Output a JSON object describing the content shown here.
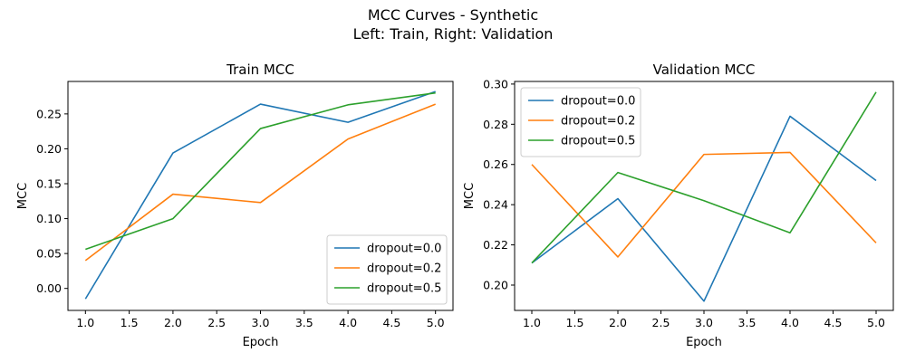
{
  "figure": {
    "title_line1": "MCC Curves - Synthetic",
    "title_line2": "Left: Train, Right: Validation"
  },
  "chart_data": [
    {
      "type": "line",
      "title": "Train MCC",
      "xlabel": "Epoch",
      "ylabel": "MCC",
      "x": [
        1,
        2,
        3,
        4,
        5
      ],
      "xticks": [
        1.0,
        1.5,
        2.0,
        2.5,
        3.0,
        3.5,
        4.0,
        4.5,
        5.0
      ],
      "xtick_labels": [
        "1.0",
        "1.5",
        "2.0",
        "2.5",
        "3.0",
        "3.5",
        "4.0",
        "4.5",
        "5.0"
      ],
      "yticks": [
        0.0,
        0.05,
        0.1,
        0.15,
        0.2,
        0.25
      ],
      "ytick_labels": [
        "0.00",
        "0.05",
        "0.10",
        "0.15",
        "0.20",
        "0.25"
      ],
      "xlim": [
        0.8,
        5.2
      ],
      "ylim": [
        -0.0315,
        0.2965
      ],
      "legend_position": "lower right",
      "series": [
        {
          "name": "dropout=0.0",
          "color": "#1f77b4",
          "values": [
            -0.015,
            0.194,
            0.264,
            0.238,
            0.282
          ]
        },
        {
          "name": "dropout=0.2",
          "color": "#ff7f0e",
          "values": [
            0.04,
            0.135,
            0.123,
            0.214,
            0.264
          ]
        },
        {
          "name": "dropout=0.5",
          "color": "#2ca02c",
          "values": [
            0.056,
            0.1,
            0.229,
            0.263,
            0.28
          ]
        }
      ]
    },
    {
      "type": "line",
      "title": "Validation MCC",
      "xlabel": "Epoch",
      "ylabel": "MCC",
      "x": [
        1,
        2,
        3,
        4,
        5
      ],
      "xticks": [
        1.0,
        1.5,
        2.0,
        2.5,
        3.0,
        3.5,
        4.0,
        4.5,
        5.0
      ],
      "xtick_labels": [
        "1.0",
        "1.5",
        "2.0",
        "2.5",
        "3.0",
        "3.5",
        "4.0",
        "4.5",
        "5.0"
      ],
      "yticks": [
        0.2,
        0.22,
        0.24,
        0.26,
        0.28,
        0.3
      ],
      "ytick_labels": [
        "0.20",
        "0.22",
        "0.24",
        "0.26",
        "0.28",
        "0.30"
      ],
      "xlim": [
        0.8,
        5.2
      ],
      "ylim": [
        0.1874,
        0.3013
      ],
      "legend_position": "upper left",
      "series": [
        {
          "name": "dropout=0.0",
          "color": "#1f77b4",
          "values": [
            0.211,
            0.243,
            0.192,
            0.284,
            0.252
          ]
        },
        {
          "name": "dropout=0.2",
          "color": "#ff7f0e",
          "values": [
            0.26,
            0.214,
            0.265,
            0.266,
            0.221
          ]
        },
        {
          "name": "dropout=0.5",
          "color": "#2ca02c",
          "values": [
            0.211,
            0.256,
            0.242,
            0.226,
            0.296
          ]
        }
      ]
    }
  ]
}
